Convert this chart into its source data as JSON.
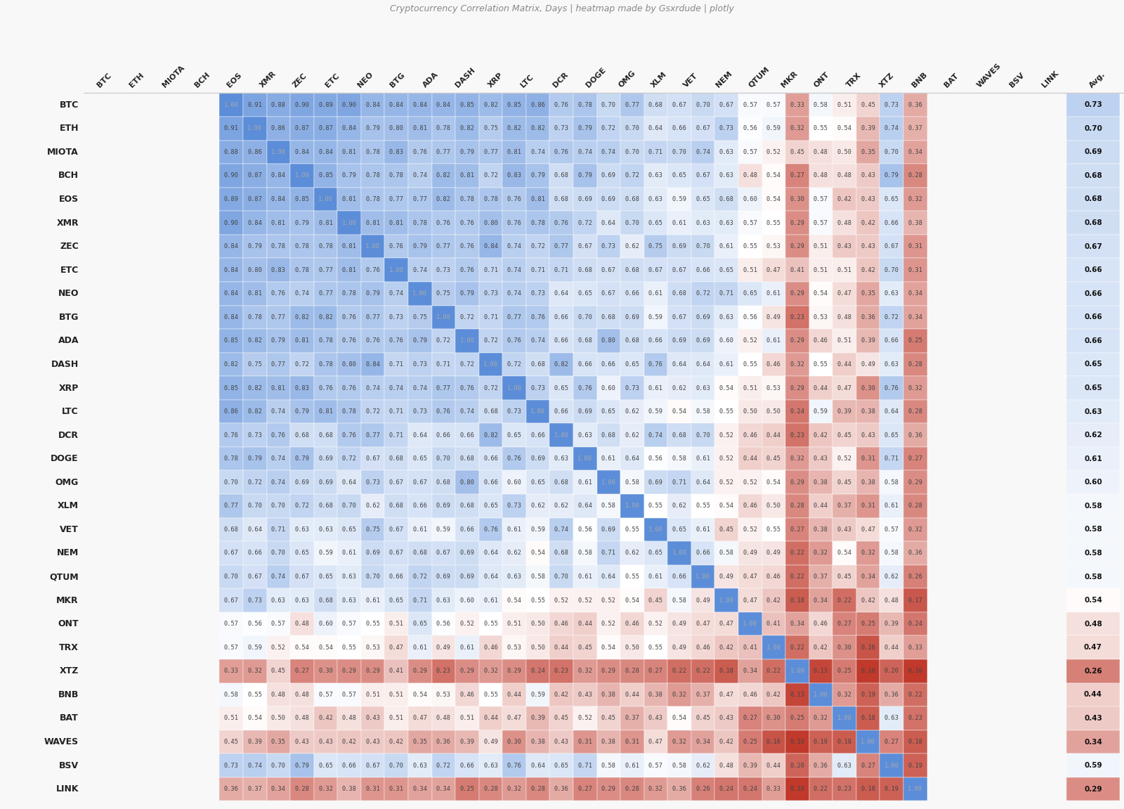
{
  "labels": [
    "BTC",
    "ETH",
    "MIOTA",
    "BCH",
    "EOS",
    "XMR",
    "ZEC",
    "ETC",
    "NEO",
    "BTG",
    "ADA",
    "DASH",
    "XRP",
    "LTC",
    "DCR",
    "DOGE",
    "OMG",
    "XLM",
    "VET",
    "NEM",
    "QTUM",
    "MKR",
    "ONT",
    "TRX",
    "XTZ",
    "BNB",
    "BAT",
    "WAVES",
    "BSV",
    "LINK"
  ],
  "avg": [
    0.73,
    0.7,
    0.69,
    0.68,
    0.68,
    0.68,
    0.67,
    0.66,
    0.66,
    0.66,
    0.66,
    0.65,
    0.65,
    0.63,
    0.62,
    0.61,
    0.6,
    0.58,
    0.58,
    0.58,
    0.58,
    0.54,
    0.48,
    0.47,
    0.26,
    0.44,
    0.43,
    0.34,
    0.59,
    0.29
  ],
  "matrix": [
    [
      1.0,
      0.91,
      0.88,
      0.9,
      0.89,
      0.9,
      0.84,
      0.84,
      0.84,
      0.84,
      0.85,
      0.82,
      0.85,
      0.86,
      0.76,
      0.78,
      0.7,
      0.77,
      0.68,
      0.67,
      0.7,
      0.67,
      0.57,
      0.57,
      0.33,
      0.58,
      0.51,
      0.45,
      0.73,
      0.36
    ],
    [
      0.91,
      1.0,
      0.86,
      0.87,
      0.87,
      0.84,
      0.79,
      0.8,
      0.81,
      0.78,
      0.82,
      0.75,
      0.82,
      0.82,
      0.73,
      0.79,
      0.72,
      0.7,
      0.64,
      0.66,
      0.67,
      0.73,
      0.56,
      0.59,
      0.32,
      0.55,
      0.54,
      0.39,
      0.74,
      0.37
    ],
    [
      0.88,
      0.86,
      1.0,
      0.84,
      0.84,
      0.81,
      0.78,
      0.83,
      0.76,
      0.77,
      0.79,
      0.77,
      0.81,
      0.74,
      0.76,
      0.74,
      0.74,
      0.7,
      0.71,
      0.7,
      0.74,
      0.63,
      0.57,
      0.52,
      0.45,
      0.48,
      0.5,
      0.35,
      0.7,
      0.34
    ],
    [
      0.9,
      0.87,
      0.84,
      1.0,
      0.85,
      0.79,
      0.78,
      0.78,
      0.74,
      0.82,
      0.81,
      0.72,
      0.83,
      0.79,
      0.68,
      0.79,
      0.69,
      0.72,
      0.63,
      0.65,
      0.67,
      0.63,
      0.48,
      0.54,
      0.27,
      0.48,
      0.48,
      0.43,
      0.79,
      0.28
    ],
    [
      0.89,
      0.87,
      0.84,
      0.85,
      1.0,
      0.81,
      0.78,
      0.77,
      0.77,
      0.82,
      0.78,
      0.78,
      0.76,
      0.81,
      0.68,
      0.69,
      0.69,
      0.68,
      0.63,
      0.59,
      0.65,
      0.68,
      0.6,
      0.54,
      0.3,
      0.57,
      0.42,
      0.43,
      0.65,
      0.32
    ],
    [
      0.9,
      0.84,
      0.81,
      0.79,
      0.81,
      1.0,
      0.81,
      0.81,
      0.78,
      0.76,
      0.76,
      0.8,
      0.76,
      0.78,
      0.76,
      0.72,
      0.64,
      0.7,
      0.65,
      0.61,
      0.63,
      0.63,
      0.57,
      0.55,
      0.29,
      0.57,
      0.48,
      0.42,
      0.66,
      0.38
    ],
    [
      0.84,
      0.79,
      0.78,
      0.78,
      0.78,
      0.81,
      1.0,
      0.76,
      0.79,
      0.77,
      0.76,
      0.84,
      0.74,
      0.72,
      0.77,
      0.67,
      0.73,
      0.62,
      0.75,
      0.69,
      0.7,
      0.61,
      0.55,
      0.53,
      0.29,
      0.51,
      0.43,
      0.43,
      0.67,
      0.31
    ],
    [
      0.84,
      0.8,
      0.83,
      0.78,
      0.77,
      0.81,
      0.76,
      1.0,
      0.74,
      0.73,
      0.76,
      0.71,
      0.74,
      0.71,
      0.71,
      0.68,
      0.67,
      0.68,
      0.67,
      0.67,
      0.66,
      0.65,
      0.51,
      0.47,
      0.41,
      0.51,
      0.51,
      0.42,
      0.7,
      0.31
    ],
    [
      0.84,
      0.81,
      0.76,
      0.74,
      0.77,
      0.78,
      0.79,
      0.74,
      1.0,
      0.75,
      0.79,
      0.73,
      0.74,
      0.73,
      0.64,
      0.65,
      0.67,
      0.66,
      0.61,
      0.68,
      0.72,
      0.71,
      0.65,
      0.61,
      0.29,
      0.54,
      0.47,
      0.35,
      0.63,
      0.34
    ],
    [
      0.84,
      0.78,
      0.77,
      0.82,
      0.82,
      0.76,
      0.77,
      0.73,
      0.75,
      1.0,
      0.72,
      0.71,
      0.77,
      0.76,
      0.66,
      0.7,
      0.68,
      0.69,
      0.59,
      0.67,
      0.69,
      0.63,
      0.56,
      0.49,
      0.23,
      0.53,
      0.48,
      0.36,
      0.72,
      0.34
    ],
    [
      0.85,
      0.82,
      0.79,
      0.81,
      0.78,
      0.76,
      0.76,
      0.76,
      0.79,
      0.72,
      1.0,
      0.72,
      0.76,
      0.74,
      0.66,
      0.68,
      0.8,
      0.68,
      0.66,
      0.69,
      0.69,
      0.6,
      0.52,
      0.61,
      0.29,
      0.46,
      0.51,
      0.39,
      0.66,
      0.25
    ],
    [
      0.82,
      0.75,
      0.77,
      0.72,
      0.78,
      0.8,
      0.84,
      0.71,
      0.73,
      0.71,
      0.72,
      1.0,
      0.72,
      0.68,
      0.82,
      0.66,
      0.66,
      0.65,
      0.76,
      0.64,
      0.64,
      0.61,
      0.55,
      0.46,
      0.32,
      0.55,
      0.44,
      0.49,
      0.63,
      0.28
    ],
    [
      0.85,
      0.82,
      0.81,
      0.83,
      0.76,
      0.76,
      0.74,
      0.74,
      0.74,
      0.77,
      0.76,
      0.72,
      1.0,
      0.73,
      0.65,
      0.76,
      0.6,
      0.73,
      0.61,
      0.62,
      0.63,
      0.54,
      0.51,
      0.53,
      0.29,
      0.44,
      0.47,
      0.3,
      0.76,
      0.32
    ],
    [
      0.86,
      0.82,
      0.74,
      0.79,
      0.81,
      0.78,
      0.72,
      0.71,
      0.73,
      0.76,
      0.74,
      0.68,
      0.73,
      1.0,
      0.66,
      0.69,
      0.65,
      0.62,
      0.59,
      0.54,
      0.58,
      0.55,
      0.5,
      0.5,
      0.24,
      0.59,
      0.39,
      0.38,
      0.64,
      0.28
    ],
    [
      0.76,
      0.73,
      0.76,
      0.68,
      0.68,
      0.76,
      0.77,
      0.71,
      0.64,
      0.66,
      0.66,
      0.82,
      0.65,
      0.66,
      1.0,
      0.63,
      0.68,
      0.62,
      0.74,
      0.68,
      0.7,
      0.52,
      0.46,
      0.44,
      0.23,
      0.42,
      0.45,
      0.43,
      0.65,
      0.36
    ],
    [
      0.78,
      0.79,
      0.74,
      0.79,
      0.69,
      0.72,
      0.67,
      0.68,
      0.65,
      0.7,
      0.68,
      0.66,
      0.76,
      0.69,
      0.63,
      1.0,
      0.61,
      0.64,
      0.56,
      0.58,
      0.61,
      0.52,
      0.44,
      0.45,
      0.32,
      0.43,
      0.52,
      0.31,
      0.71,
      0.27
    ],
    [
      0.7,
      0.72,
      0.74,
      0.69,
      0.69,
      0.64,
      0.73,
      0.67,
      0.67,
      0.68,
      0.8,
      0.66,
      0.6,
      0.65,
      0.68,
      0.61,
      1.0,
      0.58,
      0.69,
      0.71,
      0.64,
      0.52,
      0.52,
      0.54,
      0.29,
      0.38,
      0.45,
      0.38,
      0.58,
      0.29
    ],
    [
      0.77,
      0.7,
      0.7,
      0.72,
      0.68,
      0.7,
      0.62,
      0.68,
      0.66,
      0.69,
      0.68,
      0.65,
      0.73,
      0.62,
      0.62,
      0.64,
      0.58,
      1.0,
      0.55,
      0.62,
      0.55,
      0.54,
      0.46,
      0.5,
      0.28,
      0.44,
      0.37,
      0.31,
      0.61,
      0.28
    ],
    [
      0.68,
      0.64,
      0.71,
      0.63,
      0.63,
      0.65,
      0.75,
      0.67,
      0.61,
      0.59,
      0.66,
      0.76,
      0.61,
      0.59,
      0.74,
      0.56,
      0.69,
      0.55,
      1.0,
      0.65,
      0.61,
      0.45,
      0.52,
      0.55,
      0.27,
      0.38,
      0.43,
      0.47,
      0.57,
      0.32
    ],
    [
      0.67,
      0.66,
      0.7,
      0.65,
      0.59,
      0.61,
      0.69,
      0.67,
      0.68,
      0.67,
      0.69,
      0.64,
      0.62,
      0.54,
      0.68,
      0.58,
      0.71,
      0.62,
      0.65,
      1.0,
      0.66,
      0.58,
      0.49,
      0.49,
      0.22,
      0.32,
      0.54,
      0.32,
      0.58,
      0.36
    ],
    [
      0.7,
      0.67,
      0.74,
      0.67,
      0.65,
      0.63,
      0.7,
      0.66,
      0.72,
      0.69,
      0.69,
      0.64,
      0.63,
      0.58,
      0.7,
      0.61,
      0.64,
      0.55,
      0.61,
      0.66,
      1.0,
      0.49,
      0.47,
      0.46,
      0.22,
      0.37,
      0.45,
      0.34,
      0.62,
      0.26
    ],
    [
      0.67,
      0.73,
      0.63,
      0.63,
      0.68,
      0.63,
      0.61,
      0.65,
      0.71,
      0.63,
      0.6,
      0.61,
      0.54,
      0.55,
      0.52,
      0.52,
      0.52,
      0.54,
      0.45,
      0.58,
      0.49,
      1.0,
      0.47,
      0.42,
      0.18,
      0.34,
      0.22,
      0.42,
      0.48,
      0.17
    ],
    [
      0.57,
      0.56,
      0.57,
      0.48,
      0.6,
      0.57,
      0.55,
      0.51,
      0.65,
      0.56,
      0.52,
      0.55,
      0.51,
      0.5,
      0.46,
      0.44,
      0.52,
      0.46,
      0.52,
      0.49,
      0.47,
      0.47,
      1.0,
      0.41,
      0.34,
      0.46,
      0.27,
      0.25,
      0.39,
      0.24
    ],
    [
      0.57,
      0.59,
      0.52,
      0.54,
      0.54,
      0.55,
      0.53,
      0.47,
      0.61,
      0.49,
      0.61,
      0.46,
      0.53,
      0.5,
      0.44,
      0.45,
      0.54,
      0.5,
      0.55,
      0.49,
      0.46,
      0.42,
      0.41,
      1.0,
      0.22,
      0.42,
      0.3,
      0.16,
      0.44,
      0.33
    ],
    [
      0.33,
      0.32,
      0.45,
      0.27,
      0.3,
      0.29,
      0.29,
      0.41,
      0.29,
      0.23,
      0.29,
      0.32,
      0.29,
      0.24,
      0.23,
      0.32,
      0.29,
      0.28,
      0.27,
      0.22,
      0.22,
      0.18,
      0.34,
      0.22,
      1.0,
      0.13,
      0.25,
      0.1,
      0.2,
      0.1
    ],
    [
      0.58,
      0.55,
      0.48,
      0.48,
      0.57,
      0.57,
      0.51,
      0.51,
      0.54,
      0.53,
      0.46,
      0.55,
      0.44,
      0.59,
      0.42,
      0.43,
      0.38,
      0.44,
      0.38,
      0.32,
      0.37,
      0.47,
      0.46,
      0.42,
      0.13,
      1.0,
      0.32,
      0.19,
      0.36,
      0.22
    ],
    [
      0.51,
      0.54,
      0.5,
      0.48,
      0.42,
      0.48,
      0.43,
      0.51,
      0.47,
      0.48,
      0.51,
      0.44,
      0.47,
      0.39,
      0.45,
      0.52,
      0.45,
      0.37,
      0.43,
      0.54,
      0.45,
      0.43,
      0.27,
      0.3,
      0.25,
      0.32,
      1.0,
      0.18,
      0.63,
      0.23
    ],
    [
      0.45,
      0.39,
      0.35,
      0.43,
      0.43,
      0.42,
      0.43,
      0.42,
      0.35,
      0.36,
      0.39,
      0.49,
      0.3,
      0.38,
      0.43,
      0.31,
      0.38,
      0.31,
      0.47,
      0.32,
      0.34,
      0.42,
      0.25,
      0.16,
      0.1,
      0.19,
      0.18,
      1.0,
      0.27,
      0.18
    ],
    [
      0.73,
      0.74,
      0.7,
      0.79,
      0.65,
      0.66,
      0.67,
      0.7,
      0.63,
      0.72,
      0.66,
      0.63,
      0.76,
      0.64,
      0.65,
      0.71,
      0.58,
      0.61,
      0.57,
      0.58,
      0.62,
      0.48,
      0.39,
      0.44,
      0.2,
      0.36,
      0.63,
      0.27,
      1.0,
      0.19
    ],
    [
      0.36,
      0.37,
      0.34,
      0.28,
      0.32,
      0.38,
      0.31,
      0.31,
      0.34,
      0.34,
      0.25,
      0.28,
      0.32,
      0.28,
      0.36,
      0.27,
      0.29,
      0.28,
      0.32,
      0.36,
      0.26,
      0.24,
      0.24,
      0.33,
      0.1,
      0.22,
      0.23,
      0.18,
      0.19,
      1.0
    ]
  ],
  "title": "Cryptocurrency Correlation Matrix, Days | heatmap made by Gsxrdude | plotly",
  "bg_color": "#f8f8f8",
  "cmap_low": "#c0392b",
  "cmap_mid": "#ffffff",
  "cmap_high": "#5b8dd9",
  "cell_edge": "#ffffff",
  "row_label_color": "#222222",
  "col_label_color": "#222222",
  "diag_text_color": "#aaaaaa",
  "normal_text_color": "#444444",
  "avg_text_color": "#111111",
  "title_color": "#888888",
  "title_fontsize": 9,
  "row_label_fontsize": 9,
  "col_label_fontsize": 8,
  "cell_fontsize": 6.2,
  "avg_fontsize": 7.5
}
